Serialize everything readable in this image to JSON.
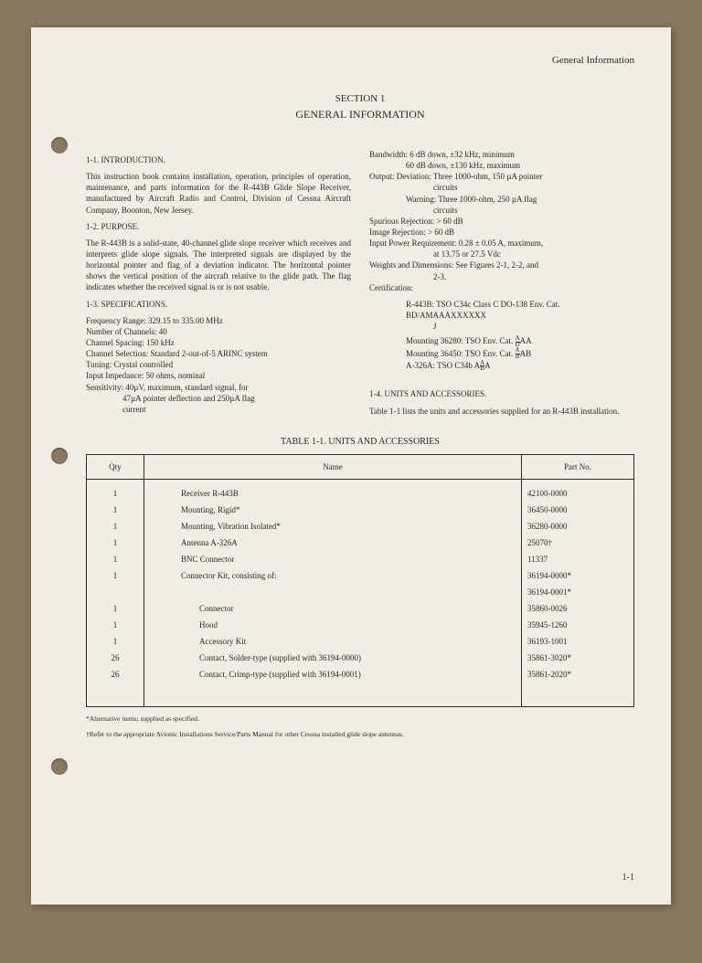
{
  "header": {
    "right": "General Information"
  },
  "section": {
    "num": "SECTION 1",
    "title": "GENERAL INFORMATION"
  },
  "left": {
    "h1": "1-1.  INTRODUCTION.",
    "p1": "This instruction book contains installation, operation, principles of operation, maintenance, and parts information for the R-443B Glide Slope Receiver, manufactured by Aircraft Radio and Control, Division of Cessna Aircraft Company, Boonton, New Jersey.",
    "h2": "1-2.  PURPOSE.",
    "p2": "The R-443B is a solid-state, 40-channel glide slope receiver which receives and interprets glide slope signals.  The interpreted signals are displayed by the horizontal pointer and flag of a deviation indicator.  The horizontal pointer shows the vertical position of the aircraft relative to the glide path.  The flag indicates whether the received signal is or is not usable.",
    "h3": "1-3.  SPECIFICATIONS.",
    "specs": {
      "s1": "Frequency Range:  329.15 to 335.00 MHz",
      "s2": "Number of Channels:  40",
      "s3": "Channel Spacing:  150 kHz",
      "s4": "Channel Selection:  Standard 2-out-of-5 ARINC system",
      "s5": "Tuning:  Crystal controlled",
      "s6": "Input Impedance:  50 ohms, nominal",
      "s7a": "Sensitivity:  40µV, maximum, standard signal, for",
      "s7b": "47µA pointer deflection and 250µA flag",
      "s7c": "current"
    }
  },
  "right": {
    "specs": {
      "bw1": "Bandwidth:  6 dB down, ±32 kHz, minimum",
      "bw2": "60 dB down, ±130 kHz, maximum",
      "out1": "Output:  Deviation:  Three 1000-ohm, 150 µA pointer",
      "out1b": "circuits",
      "out2": "Warning:  Three 1000-ohm, 250 µA flag",
      "out2b": "circuits",
      "sr": "Spurious Rejection:  > 60 dB",
      "ir": "Image Rejection:  > 60 dB",
      "pwr1": "Input Power Requirement:  0.28 ± 0.05 A, maximum,",
      "pwr2": "at 13.75 or 27.5 Vdc",
      "wd": "Weights and Dimensions:  See Figures 2-1, 2-2, and",
      "wd2": "2-3.",
      "cert": "Certification:",
      "c1a": "R-443B:  TSO C34c Class C DO-138 Env. Cat.",
      "c1b": "BD/AMAAAXXXXXX",
      "c1c": "J",
      "c2": "Mounting 36280:  TSO Env. Cat.",
      "c3": "Mounting 36450:  TSO Env. Cat.",
      "c4": "A-326A:  TSO C34b"
    },
    "h4": "1-4.  UNITS AND ACCESSORIES.",
    "p4": "Table 1-1 lists the units and accessories supplied for an R-443B installation."
  },
  "table": {
    "title": "TABLE 1-1.  UNITS AND ACCESSORIES",
    "cols": {
      "qty": "Qty",
      "name": "Name",
      "part": "Part No."
    },
    "rows": [
      {
        "qty": "1",
        "name": "Receiver R-443B",
        "part": "42100-0000",
        "sub": false
      },
      {
        "qty": "1",
        "name": "Mounting, Rigid*",
        "part": "36450-0000",
        "sub": false
      },
      {
        "qty": "1",
        "name": "Mounting, Vibration Isolated*",
        "part": "36280-0000",
        "sub": false
      },
      {
        "qty": "1",
        "name": "Antenna A-326A",
        "part": "25070†",
        "sub": false
      },
      {
        "qty": "1",
        "name": "BNC Connector",
        "part": "11337",
        "sub": false
      },
      {
        "qty": "1",
        "name": "Connector Kit, consisting of:",
        "part": "36194-0000*",
        "sub": false
      },
      {
        "qty": "",
        "name": "",
        "part": "36194-0001*",
        "sub": false
      },
      {
        "qty": "1",
        "name": "Connector",
        "part": "35860-0026",
        "sub": true
      },
      {
        "qty": "1",
        "name": "Hood",
        "part": "35945-1260",
        "sub": true
      },
      {
        "qty": "1",
        "name": "Accessory Kit",
        "part": "36193-1001",
        "sub": true
      },
      {
        "qty": "26",
        "name": "Contact, Solder-type (supplied with 36194-0000)",
        "part": "35861-3020*",
        "sub": true
      },
      {
        "qty": "26",
        "name": "Contact, Crimp-type (supplied with 36194-0001)",
        "part": "35861-2020*",
        "sub": true
      }
    ]
  },
  "footnotes": {
    "f1": "*Alternative items; supplied as specified.",
    "f2": "†Refer to the appropriate Avionic Installations Service/Parts Manual for other Cessna installed glide slope antennas."
  },
  "pagenum": "1-1"
}
